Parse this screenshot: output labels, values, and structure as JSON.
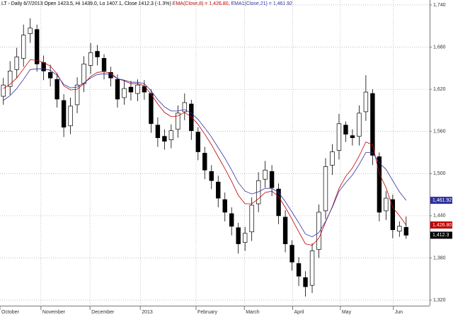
{
  "chart_data": {
    "type": "candlestick",
    "title": "LT - Daily 6/7/2013 Open 1423.5, Hi 1439.0, Lo 1407.1, Close 1412.3 (-1.3%)",
    "xlim": [
      0,
      64
    ],
    "xticks": [
      {
        "value": 0,
        "label": "October"
      },
      {
        "value": 6.1,
        "label": "November"
      },
      {
        "value": 13.4,
        "label": "December"
      },
      {
        "value": 20.9,
        "label": "2013"
      },
      {
        "value": 29.2,
        "label": "February"
      },
      {
        "value": 36.4,
        "label": "March"
      },
      {
        "value": 43.6,
        "label": "April"
      },
      {
        "value": 50.7,
        "label": "May"
      },
      {
        "value": 58.6,
        "label": "Jun"
      }
    ],
    "ylim": [
      1312,
      1747
    ],
    "yticks": [
      {
        "value": 1320,
        "label": "1,320"
      },
      {
        "value": 1380,
        "label": "1,380"
      },
      {
        "value": 1440,
        "label": "1,440"
      },
      {
        "value": 1500,
        "label": "1,500"
      },
      {
        "value": 1560,
        "label": "1,560"
      },
      {
        "value": 1620,
        "label": "1,620"
      },
      {
        "value": 1680,
        "label": "1,680"
      },
      {
        "value": 1740,
        "label": "1,740"
      }
    ],
    "grid": true,
    "up_color": "#ffffff",
    "down_color": "#000000",
    "open": [
      1610,
      1624,
      1648,
      1664,
      1699,
      1705,
      1658,
      1644,
      1634,
      1604,
      1568,
      1598,
      1628,
      1654,
      1674,
      1664,
      1644,
      1634,
      1608,
      1623,
      1614,
      1624,
      1614,
      1569,
      1553,
      1548,
      1563,
      1588,
      1599,
      1559,
      1529,
      1503,
      1488,
      1463,
      1443,
      1423,
      1402,
      1417,
      1457,
      1492,
      1503,
      1478,
      1438,
      1398,
      1372,
      1352,
      1341,
      1392,
      1447,
      1512,
      1533,
      1569,
      1554,
      1553,
      1588,
      1614,
      1524,
      1447,
      1463,
      1418,
      1423.5
    ],
    "high": [
      1636,
      1660,
      1679,
      1712,
      1721,
      1712,
      1668,
      1655,
      1643,
      1613,
      1608,
      1637,
      1667,
      1686,
      1683,
      1670,
      1652,
      1641,
      1633,
      1632,
      1634,
      1633,
      1620,
      1580,
      1563,
      1570,
      1597,
      1614,
      1605,
      1566,
      1538,
      1512,
      1497,
      1473,
      1452,
      1430,
      1424,
      1466,
      1502,
      1518,
      1512,
      1486,
      1448,
      1405,
      1381,
      1361,
      1401,
      1456,
      1522,
      1542,
      1585,
      1574,
      1563,
      1597,
      1640,
      1620,
      1530,
      1475,
      1470,
      1432,
      1439.0
    ],
    "low": [
      1598,
      1612,
      1636,
      1652,
      1686,
      1645,
      1633,
      1624,
      1594,
      1552,
      1556,
      1586,
      1616,
      1642,
      1654,
      1634,
      1624,
      1594,
      1598,
      1604,
      1603,
      1605,
      1558,
      1538,
      1534,
      1536,
      1551,
      1576,
      1548,
      1519,
      1492,
      1478,
      1452,
      1432,
      1412,
      1386,
      1390,
      1404,
      1445,
      1480,
      1468,
      1428,
      1388,
      1362,
      1340,
      1325,
      1330,
      1380,
      1435,
      1498,
      1520,
      1545,
      1540,
      1540,
      1575,
      1512,
      1432,
      1434,
      1408,
      1410,
      1407.1
    ],
    "close": [
      1626,
      1646,
      1666,
      1697,
      1707,
      1656,
      1646,
      1636,
      1606,
      1566,
      1596,
      1626,
      1656,
      1672,
      1666,
      1646,
      1636,
      1606,
      1621,
      1616,
      1626,
      1616,
      1571,
      1551,
      1546,
      1561,
      1586,
      1601,
      1561,
      1531,
      1505,
      1490,
      1465,
      1445,
      1425,
      1400,
      1415,
      1455,
      1490,
      1505,
      1480,
      1440,
      1400,
      1374,
      1354,
      1339,
      1390,
      1445,
      1510,
      1531,
      1571,
      1556,
      1551,
      1586,
      1616,
      1526,
      1445,
      1465,
      1420,
      1425,
      1412.3
    ],
    "close_label": "1,412.3",
    "series": [
      {
        "name": "EMA(Close,8) = 1,426.80,",
        "color": "#c00000",
        "last_label": "1,426.80",
        "values": [
          1621,
          1627,
          1636,
          1649,
          1662,
          1661,
          1658,
          1653,
          1642,
          1625,
          1619,
          1620,
          1628,
          1638,
          1644,
          1645,
          1643,
          1635,
          1632,
          1628,
          1628,
          1625,
          1613,
          1599,
          1587,
          1581,
          1582,
          1587,
          1581,
          1570,
          1556,
          1541,
          1524,
          1507,
          1489,
          1469,
          1457,
          1457,
          1464,
          1473,
          1475,
          1467,
          1452,
          1435,
          1417,
          1400,
          1398,
          1408,
          1431,
          1453,
          1479,
          1496,
          1508,
          1525,
          1545,
          1541,
          1500,
          1480,
          1452,
          1440,
          1426.8
        ]
      },
      {
        "name": "EMA1(Close,21) = 1,461.92",
        "color": "#3030a0",
        "last_label": "1,461.92",
        "values": [
          1604,
          1611,
          1621,
          1634,
          1648,
          1649,
          1649,
          1647,
          1640,
          1627,
          1622,
          1623,
          1629,
          1636,
          1641,
          1642,
          1641,
          1635,
          1633,
          1630,
          1630,
          1628,
          1618,
          1605,
          1595,
          1589,
          1589,
          1591,
          1586,
          1577,
          1565,
          1552,
          1537,
          1522,
          1505,
          1487,
          1475,
          1471,
          1474,
          1479,
          1479,
          1473,
          1460,
          1445,
          1430,
          1414,
          1410,
          1416,
          1432,
          1452,
          1475,
          1487,
          1498,
          1513,
          1530,
          1530,
          1515,
          1506,
          1490,
          1474,
          1461.92
        ]
      }
    ]
  }
}
